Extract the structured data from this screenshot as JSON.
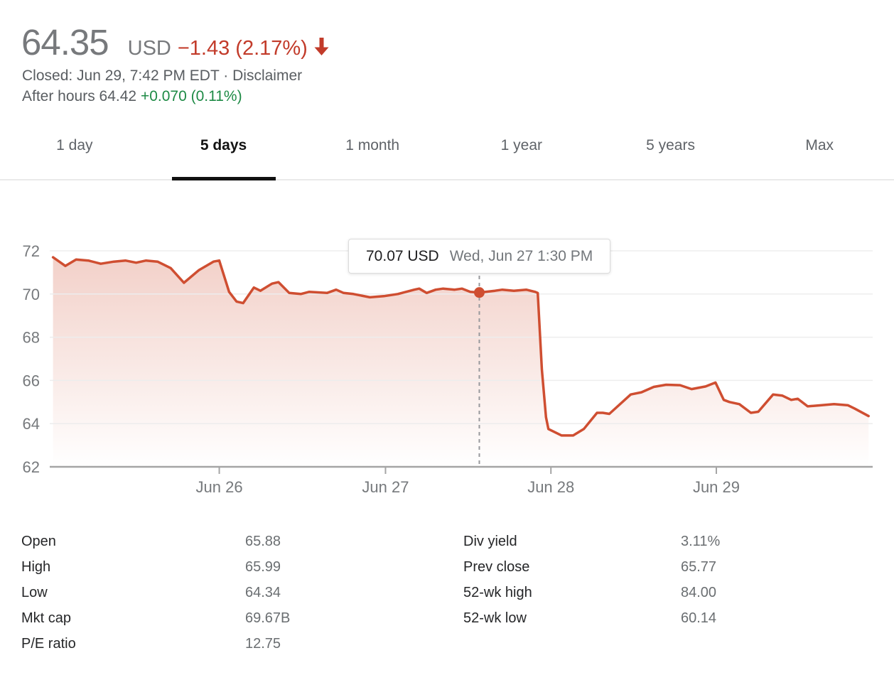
{
  "header": {
    "price": "64.35",
    "currency": "USD",
    "change": "−1.43 (2.17%)",
    "direction_icon": "arrow-down-icon",
    "status": "Closed: Jun 29, 7:42 PM EDT",
    "separator": "·",
    "disclaimer": "Disclaimer",
    "after_hours_text": "After hours 64.42",
    "after_hours_change": "+0.070 (0.11%)"
  },
  "colors": {
    "change_red": "#c23b2a",
    "after_hours_green": "#1d8a45",
    "chart_line": "#cf4e31",
    "chart_fill_top": "rgba(207,78,49,0.27)",
    "chart_fill_bottom": "rgba(207,78,49,0)",
    "grid": "#ededed",
    "axis_line": "#a5a5a5",
    "axis_label": "#76797c",
    "cursor_dash": "#98999d"
  },
  "tabs": [
    {
      "label": "1 day",
      "selected": false
    },
    {
      "label": "5 days",
      "selected": true
    },
    {
      "label": "1 month",
      "selected": false
    },
    {
      "label": "1 year",
      "selected": false
    },
    {
      "label": "5 years",
      "selected": false
    },
    {
      "label": "Max",
      "selected": false
    }
  ],
  "chart_data": {
    "type": "line",
    "ylabel": "",
    "xlabel": "",
    "ylim": [
      62,
      72
    ],
    "y_ticks": [
      72,
      70,
      68,
      66,
      64,
      62
    ],
    "grid": true,
    "x_ticks": [
      {
        "label": "Jun 26",
        "f": 0.206
      },
      {
        "label": "Jun 27",
        "f": 0.408
      },
      {
        "label": "Jun 28",
        "f": 0.609
      },
      {
        "label": "Jun 29",
        "f": 0.81
      }
    ],
    "points": [
      [
        0.004,
        71.7
      ],
      [
        0.019,
        71.3
      ],
      [
        0.032,
        71.6
      ],
      [
        0.047,
        71.55
      ],
      [
        0.062,
        71.4
      ],
      [
        0.078,
        71.5
      ],
      [
        0.092,
        71.55
      ],
      [
        0.105,
        71.45
      ],
      [
        0.117,
        71.55
      ],
      [
        0.131,
        71.5
      ],
      [
        0.147,
        71.2
      ],
      [
        0.163,
        70.52
      ],
      [
        0.181,
        71.1
      ],
      [
        0.199,
        71.5
      ],
      [
        0.206,
        71.55
      ],
      [
        0.218,
        70.1
      ],
      [
        0.227,
        69.65
      ],
      [
        0.235,
        69.58
      ],
      [
        0.248,
        70.3
      ],
      [
        0.256,
        70.15
      ],
      [
        0.27,
        70.48
      ],
      [
        0.278,
        70.55
      ],
      [
        0.291,
        70.05
      ],
      [
        0.305,
        70.0
      ],
      [
        0.315,
        70.1
      ],
      [
        0.337,
        70.05
      ],
      [
        0.348,
        70.2
      ],
      [
        0.357,
        70.05
      ],
      [
        0.369,
        70.0
      ],
      [
        0.389,
        69.85
      ],
      [
        0.406,
        69.9
      ],
      [
        0.423,
        70.0
      ],
      [
        0.443,
        70.2
      ],
      [
        0.449,
        70.25
      ],
      [
        0.458,
        70.05
      ],
      [
        0.469,
        70.2
      ],
      [
        0.478,
        70.25
      ],
      [
        0.492,
        70.2
      ],
      [
        0.501,
        70.25
      ],
      [
        0.511,
        70.1
      ],
      [
        0.522,
        70.07
      ],
      [
        0.541,
        70.15
      ],
      [
        0.55,
        70.2
      ],
      [
        0.564,
        70.15
      ],
      [
        0.579,
        70.2
      ],
      [
        0.59,
        70.1
      ],
      [
        0.593,
        70.05
      ],
      [
        0.598,
        66.5
      ],
      [
        0.603,
        64.3
      ],
      [
        0.606,
        63.75
      ],
      [
        0.622,
        63.45
      ],
      [
        0.636,
        63.45
      ],
      [
        0.649,
        63.75
      ],
      [
        0.665,
        64.5
      ],
      [
        0.672,
        64.5
      ],
      [
        0.68,
        64.45
      ],
      [
        0.706,
        65.35
      ],
      [
        0.719,
        65.45
      ],
      [
        0.734,
        65.7
      ],
      [
        0.749,
        65.8
      ],
      [
        0.766,
        65.78
      ],
      [
        0.78,
        65.6
      ],
      [
        0.797,
        65.72
      ],
      [
        0.809,
        65.9
      ],
      [
        0.819,
        65.1
      ],
      [
        0.826,
        65.0
      ],
      [
        0.838,
        64.9
      ],
      [
        0.852,
        64.5
      ],
      [
        0.861,
        64.55
      ],
      [
        0.879,
        65.35
      ],
      [
        0.89,
        65.3
      ],
      [
        0.901,
        65.1
      ],
      [
        0.909,
        65.15
      ],
      [
        0.921,
        64.8
      ],
      [
        0.937,
        64.85
      ],
      [
        0.953,
        64.9
      ],
      [
        0.97,
        64.85
      ],
      [
        0.978,
        64.7
      ],
      [
        0.995,
        64.35
      ]
    ],
    "marker": {
      "f": 0.522,
      "v": 70.07
    },
    "tooltip": {
      "price": "70.07 USD",
      "time": "Wed, Jun 27 1:30 PM"
    }
  },
  "stats": {
    "left": [
      {
        "label": "Open",
        "value": "65.88"
      },
      {
        "label": "High",
        "value": "65.99"
      },
      {
        "label": "Low",
        "value": "64.34"
      },
      {
        "label": "Mkt cap",
        "value": "69.67B"
      },
      {
        "label": "P/E ratio",
        "value": "12.75"
      }
    ],
    "right": [
      {
        "label": "Div yield",
        "value": "3.11%"
      },
      {
        "label": "Prev close",
        "value": "65.77"
      },
      {
        "label": "52-wk high",
        "value": "84.00"
      },
      {
        "label": "52-wk low",
        "value": "60.14"
      }
    ]
  }
}
